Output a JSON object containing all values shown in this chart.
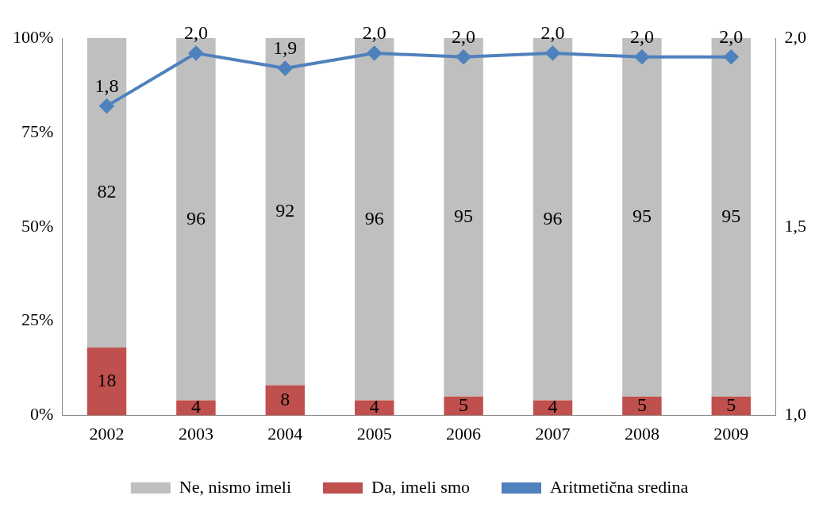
{
  "chart_data": {
    "type": "bar",
    "stacked": true,
    "categories": [
      "2002",
      "2003",
      "2004",
      "2005",
      "2006",
      "2007",
      "2008",
      "2009"
    ],
    "series": [
      {
        "name": "Da, imeli smo",
        "color": "#c0504d",
        "values": [
          18,
          4,
          8,
          4,
          5,
          4,
          5,
          5
        ],
        "value_labels": [
          "18",
          "4",
          "8",
          "4",
          "5",
          "4",
          "5",
          "5"
        ]
      },
      {
        "name": "Ne, nismo imeli",
        "color": "#bfbfbf",
        "values": [
          82,
          96,
          92,
          96,
          95,
          96,
          95,
          95
        ],
        "value_labels": [
          "82",
          "96",
          "92",
          "96",
          "95",
          "96",
          "95",
          "95"
        ]
      },
      {
        "name": "Aritmetična sredina",
        "type": "line",
        "axis": "y2",
        "color": "#4f81bd",
        "marker": "diamond",
        "values": [
          1.82,
          1.96,
          1.92,
          1.96,
          1.95,
          1.96,
          1.95,
          1.95
        ],
        "value_labels": [
          "1,8",
          "2,0",
          "1,9",
          "2,0",
          "2,0",
          "2,0",
          "2,0",
          "2,0"
        ]
      }
    ],
    "ylim": [
      0,
      100
    ],
    "yticks": [
      {
        "value": 0,
        "label": "0%"
      },
      {
        "value": 25,
        "label": "25%"
      },
      {
        "value": 50,
        "label": "50%"
      },
      {
        "value": 75,
        "label": "75%"
      },
      {
        "value": 100,
        "label": "100%"
      }
    ],
    "y2lim": [
      1,
      2
    ],
    "y2ticks": [
      {
        "value": 1,
        "label": "1,0"
      },
      {
        "value": 1.5,
        "label": "1,5"
      },
      {
        "value": 2,
        "label": "2,0"
      }
    ],
    "grid": false,
    "legend": "bottom"
  }
}
